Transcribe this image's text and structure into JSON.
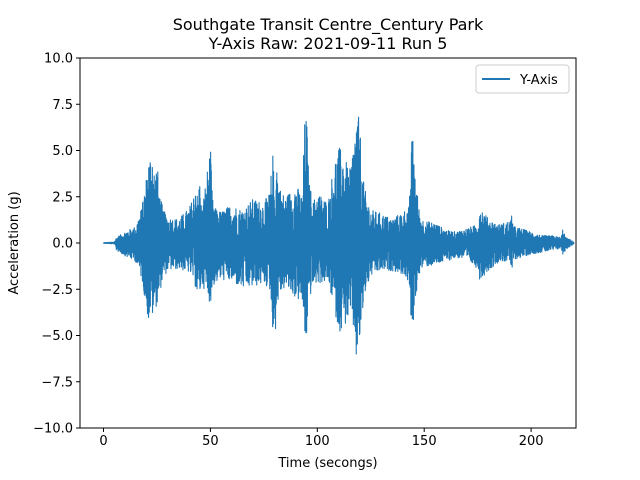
{
  "chart_data": {
    "type": "line",
    "title_line1": "Southgate Transit Centre_Century Park",
    "title_line2": "Y-Axis Raw: 2021-09-11 Run 5",
    "xlabel": "Time (secongs)",
    "ylabel": "Acceleration (g)",
    "xlim": [
      -11,
      221
    ],
    "ylim": [
      -10,
      10
    ],
    "xticks": [
      0,
      50,
      100,
      150,
      200
    ],
    "xtick_labels": [
      "0",
      "50",
      "100",
      "150",
      "200"
    ],
    "yticks": [
      -10,
      -7.5,
      -5,
      -2.5,
      0,
      2.5,
      5,
      7.5,
      10
    ],
    "ytick_labels": [
      "−10.0",
      "−7.5",
      "−5.0",
      "−2.5",
      "0.0",
      "2.5",
      "5.0",
      "7.5",
      "10.0"
    ],
    "legend_position": "top-right",
    "grid": false,
    "series": [
      {
        "name": "Y-Axis",
        "color": "#1f77b4",
        "x": [
          0,
          5,
          6,
          10,
          15,
          18,
          20,
          21,
          22,
          23,
          24,
          25,
          26,
          28,
          30,
          35,
          40,
          42,
          43,
          44,
          45,
          46,
          50,
          51,
          52,
          55,
          60,
          65,
          70,
          75,
          78,
          79,
          80,
          81,
          82,
          85,
          90,
          93,
          94,
          95,
          96,
          98,
          100,
          105,
          108,
          110,
          112,
          115,
          117,
          118,
          119,
          120,
          121,
          122,
          125,
          130,
          135,
          140,
          143,
          144,
          145,
          146,
          148,
          150,
          155,
          160,
          165,
          170,
          175,
          176,
          180,
          185,
          190,
          191,
          192,
          195,
          200,
          205,
          210,
          214,
          215,
          216,
          218,
          220
        ],
        "upper": [
          0.02,
          0.05,
          0.3,
          0.6,
          0.9,
          2.0,
          3.6,
          4.6,
          4.9,
          5.5,
          3.5,
          4.6,
          2.8,
          1.8,
          1.4,
          1.3,
          1.9,
          2.5,
          3.5,
          2.5,
          3.5,
          1.8,
          5.2,
          2.4,
          1.9,
          1.7,
          2.1,
          1.8,
          2.4,
          2.2,
          2.8,
          5.3,
          2.9,
          4.7,
          3.1,
          2.5,
          3.2,
          2.5,
          6.5,
          7.0,
          3.5,
          2.2,
          2.8,
          2.2,
          4.5,
          5.2,
          5.0,
          3.8,
          5.5,
          6.8,
          7.1,
          6.2,
          4.0,
          3.0,
          1.8,
          1.6,
          1.3,
          1.7,
          2.0,
          5.5,
          5.8,
          3.5,
          1.5,
          1.2,
          1.1,
          0.7,
          0.6,
          0.8,
          1.0,
          2.1,
          1.3,
          1.0,
          1.2,
          1.5,
          0.9,
          0.8,
          0.6,
          0.4,
          0.4,
          0.3,
          0.9,
          0.3,
          0.2,
          0.05
        ],
        "lower": [
          -0.02,
          -0.05,
          -0.4,
          -0.7,
          -1.0,
          -2.0,
          -3.5,
          -4.3,
          -3.8,
          -4.0,
          -3.5,
          -3.4,
          -2.8,
          -1.9,
          -1.5,
          -1.4,
          -1.6,
          -2.0,
          -2.4,
          -3.0,
          -2.8,
          -2.2,
          -3.3,
          -2.5,
          -2.2,
          -2.0,
          -2.1,
          -2.5,
          -2.4,
          -2.2,
          -2.6,
          -4.5,
          -5.5,
          -3.8,
          -2.9,
          -2.4,
          -3.0,
          -3.3,
          -5.5,
          -5.2,
          -3.2,
          -2.3,
          -2.2,
          -2.1,
          -3.6,
          -4.8,
          -4.7,
          -4.0,
          -4.8,
          -6.3,
          -6.6,
          -5.2,
          -4.3,
          -2.9,
          -1.8,
          -1.5,
          -1.5,
          -1.7,
          -2.2,
          -5.6,
          -4.2,
          -3.0,
          -1.5,
          -1.3,
          -1.2,
          -1.0,
          -0.8,
          -0.9,
          -1.4,
          -2.0,
          -1.5,
          -1.0,
          -1.0,
          -1.6,
          -0.9,
          -0.8,
          -0.6,
          -0.5,
          -0.4,
          -0.3,
          -0.7,
          -0.4,
          -0.2,
          -0.05
        ]
      }
    ]
  }
}
